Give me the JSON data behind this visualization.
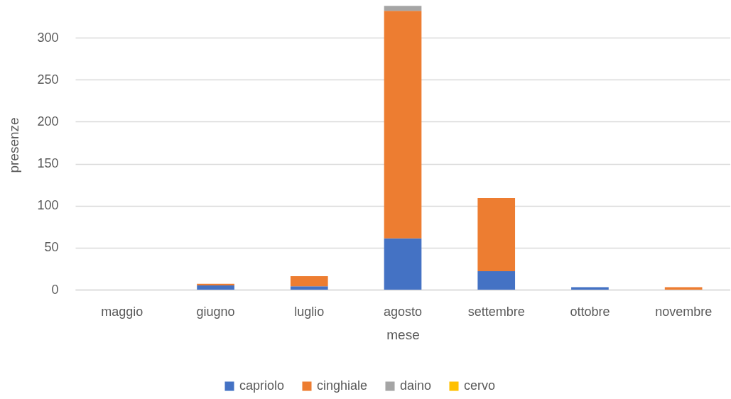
{
  "chart_data": {
    "type": "bar",
    "xlabel": "mese",
    "ylabel": "presenze",
    "categories": [
      "maggio",
      "giugno",
      "luglio",
      "agosto",
      "settembre",
      "ottobre",
      "novembre"
    ],
    "series": [
      {
        "name": "capriolo",
        "color": "#4472c4",
        "values": [
          null,
          5,
          4,
          61,
          22,
          3,
          null
        ]
      },
      {
        "name": "cinghiale",
        "color": "#ed7d31",
        "values": [
          null,
          2,
          12,
          271,
          87,
          null,
          3
        ]
      },
      {
        "name": "daino",
        "color": "#a5a5a5",
        "values": [
          null,
          null,
          null,
          6,
          null,
          null,
          null
        ]
      },
      {
        "name": "cervo",
        "color": "#ffc000",
        "values": [
          null,
          null,
          null,
          null,
          null,
          null,
          null
        ]
      }
    ],
    "stacked": true,
    "ylim": [
      0,
      345
    ],
    "yticks": [
      0,
      50,
      100,
      150,
      200,
      250,
      300
    ],
    "grid": "y",
    "legend": "bottom"
  }
}
